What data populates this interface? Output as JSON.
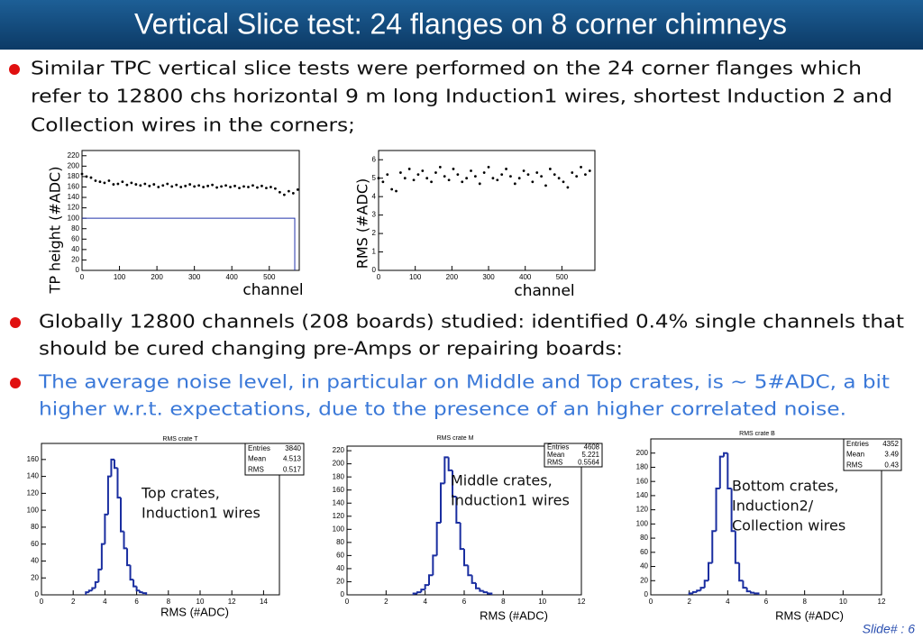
{
  "header": {
    "title": "Vertical Slice test: 24 flanges on 8 corner chimneys"
  },
  "bullets": [
    {
      "color": "#111111",
      "lines": [
        "Similar TPC vertical slice tests were performed on the 24 corner flanges which",
        "refer to 12800 chs horizontal 9 m long Induction1 wires, shortest Induction 2 and",
        "Collection wires in the corners;"
      ]
    },
    {
      "color": "#111111",
      "lines": [
        "Globally 12800 channels (208 boards) studied: identified 0.4% single channels that",
        "should be cured changing pre-Amps or repairing boards:"
      ]
    },
    {
      "color": "#3a78d8",
      "lines": [
        "The average noise level, in particular on Middle and Top crates, is ~ 5#ADC, a bit",
        "higher w.r.t. expectations, due to the presence of an higher correlated noise."
      ]
    }
  ],
  "footer": "Slide# : 6",
  "chart_data": [
    {
      "type": "scatter",
      "xlabel": "channel",
      "ylabel": "TP height (#ADC)",
      "xlim": [
        0,
        580
      ],
      "ylim": [
        0,
        230
      ],
      "xticks": [
        0,
        100,
        200,
        300,
        400,
        500
      ],
      "yticks": [
        0,
        20,
        40,
        60,
        80,
        100,
        120,
        140,
        160,
        180,
        200,
        220
      ],
      "series": [
        {
          "color": "#000000",
          "x": [
            0,
            12,
            24,
            36,
            48,
            60,
            72,
            84,
            96,
            108,
            120,
            132,
            144,
            156,
            168,
            180,
            192,
            204,
            216,
            228,
            240,
            252,
            264,
            276,
            288,
            300,
            312,
            324,
            336,
            348,
            360,
            372,
            384,
            396,
            408,
            420,
            432,
            444,
            456,
            468,
            480,
            492,
            504,
            516,
            528,
            540,
            552,
            564,
            576
          ],
          "values": [
            185,
            180,
            178,
            172,
            170,
            168,
            172,
            165,
            166,
            170,
            164,
            168,
            165,
            163,
            166,
            162,
            165,
            160,
            163,
            166,
            161,
            164,
            160,
            162,
            165,
            161,
            163,
            160,
            162,
            164,
            159,
            161,
            163,
            160,
            162,
            158,
            161,
            160,
            163,
            159,
            162,
            158,
            160,
            157,
            150,
            145,
            152,
            148,
            155
          ]
        },
        {
          "type": "line",
          "color": "#2233aa",
          "x": [
            0,
            568,
            568
          ],
          "values": [
            100,
            100,
            0
          ]
        }
      ]
    },
    {
      "type": "scatter",
      "xlabel": "channel",
      "ylabel": "RMS (#ADC)",
      "xlim": [
        0,
        590
      ],
      "ylim": [
        0,
        6.5
      ],
      "xticks": [
        0,
        100,
        200,
        300,
        400,
        500
      ],
      "yticks": [
        0,
        1,
        2,
        3,
        4,
        5,
        6
      ],
      "series": [
        {
          "color": "#000000",
          "x": [
            0,
            12,
            24,
            36,
            48,
            60,
            72,
            84,
            96,
            108,
            120,
            132,
            144,
            156,
            168,
            180,
            192,
            204,
            216,
            228,
            240,
            252,
            264,
            276,
            288,
            300,
            312,
            324,
            336,
            348,
            360,
            372,
            384,
            396,
            408,
            420,
            432,
            444,
            456,
            468,
            480,
            492,
            504,
            516,
            528,
            540,
            552,
            564,
            576
          ],
          "values": [
            5.0,
            4.8,
            5.2,
            4.4,
            4.3,
            5.3,
            5.0,
            5.5,
            4.9,
            5.2,
            5.4,
            5.0,
            4.8,
            5.3,
            5.6,
            5.1,
            4.9,
            5.5,
            5.2,
            4.8,
            5.0,
            5.4,
            5.1,
            4.7,
            5.3,
            5.6,
            5.0,
            4.9,
            5.2,
            5.5,
            5.1,
            4.7,
            5.0,
            5.4,
            5.2,
            4.8,
            5.3,
            5.1,
            4.6,
            5.5,
            5.2,
            5.0,
            4.8,
            4.5,
            5.3,
            5.1,
            5.6,
            5.2,
            5.4
          ]
        }
      ]
    },
    {
      "type": "histogram",
      "title": "RMS crate T",
      "xlabel": "RMS (#ADC)",
      "color": "#1a2ea0",
      "xlim": [
        0,
        15
      ],
      "ylim": [
        0,
        179
      ],
      "xticks": [
        0,
        2,
        4,
        6,
        8,
        10,
        12,
        14
      ],
      "yticks": [
        0,
        20,
        40,
        60,
        80,
        100,
        120,
        140,
        160
      ],
      "bins": [
        2.8,
        3.0,
        3.2,
        3.4,
        3.6,
        3.8,
        4.0,
        4.2,
        4.4,
        4.6,
        4.8,
        5.0,
        5.2,
        5.4,
        5.6,
        5.8,
        6.0,
        6.2,
        6.4,
        6.6
      ],
      "values": [
        3,
        5,
        8,
        15,
        30,
        60,
        95,
        140,
        160,
        150,
        115,
        75,
        55,
        35,
        18,
        10,
        5,
        3,
        2
      ],
      "stats": {
        "labels": [
          "Entries",
          "Mean",
          "RMS"
        ],
        "values": [
          3840,
          4.513,
          0.517
        ]
      },
      "annotation": [
        "Top crates,",
        "Induction1 wires"
      ]
    },
    {
      "type": "histogram",
      "title": "RMS crate M",
      "xlabel": "RMS (#ADC)",
      "color": "#1a2ea0",
      "xlim": [
        0,
        12
      ],
      "ylim": [
        0,
        227
      ],
      "xticks": [
        0,
        2,
        4,
        6,
        8,
        10,
        12
      ],
      "yticks": [
        0,
        20,
        40,
        60,
        80,
        100,
        120,
        140,
        160,
        180,
        200,
        220
      ],
      "bins": [
        3.4,
        3.6,
        3.8,
        4.0,
        4.2,
        4.4,
        4.6,
        4.8,
        5.0,
        5.2,
        5.4,
        5.6,
        5.8,
        6.0,
        6.2,
        6.4,
        6.6,
        6.8,
        7.0,
        7.2,
        7.4
      ],
      "values": [
        2,
        4,
        8,
        15,
        30,
        60,
        110,
        170,
        210,
        190,
        150,
        110,
        70,
        45,
        30,
        18,
        10,
        6,
        4,
        2
      ],
      "stats": {
        "labels": [
          "Entries",
          "Mean",
          "RMS"
        ],
        "values": [
          4608,
          5.221,
          0.5564
        ]
      },
      "annotation": [
        "Middle crates,",
        "Induction1 wires"
      ]
    },
    {
      "type": "histogram",
      "title": "RMS crate B",
      "xlabel": "RMS (#ADC)",
      "color": "#1a2ea0",
      "xlim": [
        0,
        12
      ],
      "ylim": [
        0,
        220
      ],
      "xticks": [
        0,
        2,
        4,
        6,
        8,
        10,
        12
      ],
      "yticks": [
        0,
        20,
        40,
        60,
        80,
        100,
        120,
        140,
        160,
        180,
        200
      ],
      "bins": [
        2.0,
        2.2,
        2.4,
        2.6,
        2.8,
        3.0,
        3.2,
        3.4,
        3.6,
        3.8,
        4.0,
        4.2,
        4.4,
        4.6,
        4.8,
        5.0,
        5.2,
        5.4,
        5.6
      ],
      "values": [
        2,
        4,
        6,
        10,
        20,
        45,
        90,
        150,
        195,
        200,
        150,
        90,
        45,
        20,
        10,
        5,
        3,
        2
      ],
      "stats": {
        "labels": [
          "Entries",
          "Mean",
          "RMS"
        ],
        "values": [
          4352,
          3.49,
          0.43
        ]
      },
      "annotation": [
        "Bottom crates,",
        "Induction2/",
        "Collection wires"
      ]
    }
  ]
}
